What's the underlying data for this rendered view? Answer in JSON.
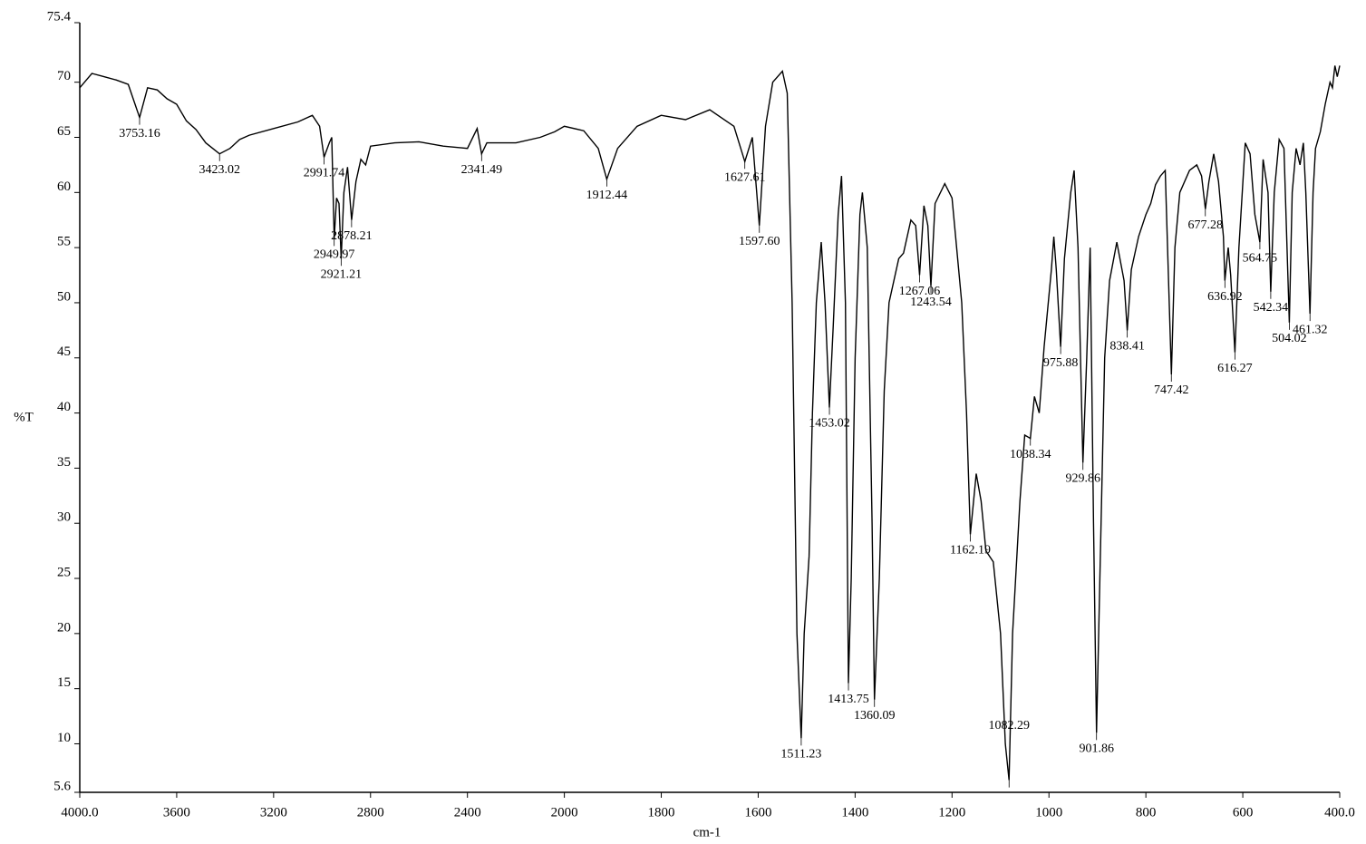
{
  "chart_data": {
    "type": "line",
    "x_label": "cm-1",
    "y_label": "%T",
    "color": "#000000",
    "xlim": [
      4000,
      400
    ],
    "ylim": [
      5.6,
      75.4
    ],
    "xticks": [
      {
        "value": 4000,
        "label": "4000.0"
      },
      3600,
      3200,
      2800,
      2400,
      2000,
      1800,
      1600,
      1400,
      1200,
      1000,
      800,
      600,
      {
        "value": 400,
        "label": "400.0"
      }
    ],
    "yticks": [
      5.6,
      10,
      15,
      20,
      25,
      30,
      35,
      40,
      45,
      50,
      55,
      60,
      65,
      70,
      75.4
    ],
    "x": [
      4000,
      3950,
      3900,
      3850,
      3800,
      3753.16,
      3720,
      3680,
      3640,
      3600,
      3560,
      3520,
      3480,
      3423.02,
      3380,
      3340,
      3300,
      3200,
      3100,
      3040,
      3010,
      2991.74,
      2970,
      2960,
      2949.97,
      2940,
      2930,
      2921.21,
      2910,
      2895,
      2878.21,
      2860,
      2840,
      2820,
      2800,
      2700,
      2600,
      2500,
      2400,
      2360,
      2341.49,
      2320,
      2200,
      2100,
      2040,
      2000,
      1960,
      1930,
      1912.44,
      1890,
      1850,
      1800,
      1750,
      1700,
      1650,
      1627.61,
      1612,
      1597.6,
      1585,
      1570,
      1550,
      1540,
      1530,
      1520,
      1511.23,
      1505,
      1495,
      1488,
      1480,
      1470,
      1462,
      1453.02,
      1445,
      1435,
      1428,
      1420,
      1413.75,
      1408,
      1400,
      1390,
      1385,
      1375,
      1365,
      1360.09,
      1350,
      1340,
      1330,
      1310,
      1300,
      1285,
      1275,
      1267.06,
      1258,
      1250,
      1243.54,
      1235,
      1215,
      1200,
      1180,
      1170,
      1162.19,
      1150,
      1140,
      1130,
      1115,
      1100,
      1090,
      1082.29,
      1075,
      1060,
      1050,
      1038.34,
      1030,
      1020,
      1010,
      995,
      990,
      985,
      975.88,
      968,
      955,
      948,
      940,
      929.86,
      922,
      915,
      908,
      901.86,
      895,
      885,
      875,
      860,
      845,
      838.41,
      830,
      815,
      800,
      790,
      780,
      770,
      760,
      747.42,
      740,
      730,
      710,
      695,
      685,
      677.28,
      670,
      660,
      650,
      640,
      636.92,
      630,
      625,
      616.27,
      608,
      595,
      585,
      575,
      564.75,
      558,
      548,
      542.34,
      535,
      525,
      515,
      504.02,
      498,
      490,
      482,
      475,
      470,
      461.32,
      455,
      450,
      440,
      430,
      420,
      415,
      410,
      405,
      400
    ],
    "values": [
      69.5,
      70.8,
      70.5,
      70.2,
      69.8,
      66.8,
      69.5,
      69.3,
      68.5,
      68,
      66.5,
      65.7,
      64.5,
      63.5,
      64,
      64.8,
      65.2,
      65.8,
      66.4,
      67,
      66,
      63.2,
      64.5,
      65,
      55.8,
      59.5,
      59,
      54,
      60,
      62.3,
      57.5,
      61,
      63,
      62.5,
      64.2,
      64.5,
      64.6,
      64.2,
      64,
      65.8,
      63.5,
      64.5,
      64.5,
      65,
      65.5,
      66,
      65.6,
      64,
      61.2,
      64,
      66,
      67,
      66.6,
      67.5,
      66,
      62.8,
      65,
      57,
      66,
      70,
      71,
      69,
      50,
      20,
      10.5,
      20,
      27,
      40,
      50,
      55.5,
      50,
      40.5,
      48,
      58,
      61.5,
      50,
      15.5,
      25,
      45,
      58,
      60,
      55,
      30,
      14,
      25,
      42,
      50,
      54,
      54.5,
      57.5,
      57,
      52.5,
      58.8,
      57,
      51.5,
      59,
      60.8,
      59.5,
      50,
      40,
      29,
      34.5,
      32,
      27.5,
      26.5,
      20,
      10,
      6.7,
      20,
      32,
      38,
      37.7,
      41.5,
      40,
      46,
      53,
      56,
      53,
      46,
      54,
      60,
      62,
      55,
      35.5,
      45,
      55,
      30,
      11,
      25,
      45,
      52,
      55.5,
      52,
      47.5,
      53,
      56,
      58,
      59,
      60.7,
      61.5,
      62,
      43.5,
      55,
      60,
      62,
      62.5,
      61.5,
      58.5,
      61,
      63.5,
      61,
      56,
      52,
      55,
      52.5,
      45.5,
      55,
      64.5,
      63.5,
      58,
      55.5,
      63,
      60,
      51,
      60,
      64.8,
      64,
      48.2,
      60,
      64,
      62.5,
      64.5,
      60,
      49,
      60,
      64,
      65.5,
      68,
      70,
      69.5,
      71.5,
      70.5,
      71.5
    ],
    "peaks": [
      3753.16,
      3423.02,
      2991.74,
      2949.97,
      2921.21,
      2878.21,
      2341.49,
      1912.44,
      1627.61,
      {
        "value": 1597.6,
        "label": "1597.60"
      },
      1511.23,
      1453.02,
      1413.75,
      1360.09,
      1267.06,
      1243.54,
      1162.19,
      1082.29,
      1038.34,
      975.88,
      929.86,
      901.86,
      838.41,
      747.42,
      677.28,
      636.92,
      616.27,
      564.75,
      542.34,
      504.02,
      461.32
    ]
  }
}
